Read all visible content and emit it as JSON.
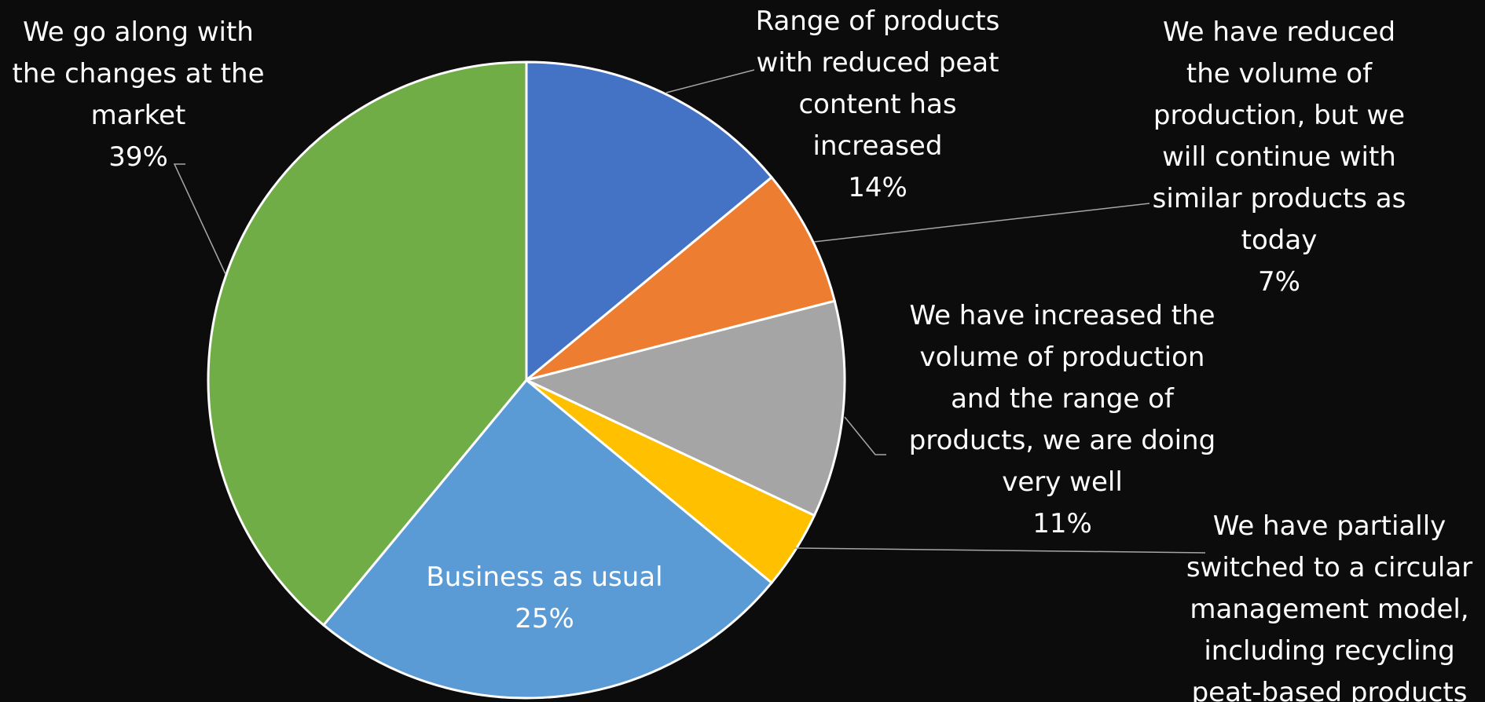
{
  "chart_data": {
    "type": "pie",
    "title": "",
    "slices": [
      {
        "label_lines": [
          "Range of products",
          "with reduced peat",
          "content has",
          "increased"
        ],
        "value": 14,
        "value_label": "14%",
        "color": "#4472c4"
      },
      {
        "label_lines": [
          "We have reduced",
          "the volume of",
          "production, but we",
          "will continue with",
          "similar products as",
          "today"
        ],
        "value": 7,
        "value_label": "7%",
        "color": "#ed7d31"
      },
      {
        "label_lines": [
          "We have increased the",
          "volume of production",
          "and the range of",
          "products, we are doing",
          "very well"
        ],
        "value": 11,
        "value_label": "11%",
        "color": "#a5a5a5"
      },
      {
        "label_lines": [
          "We have partially",
          "switched to a circular",
          "management model,",
          "including recycling",
          "peat-based products"
        ],
        "value": 4,
        "value_label": "",
        "color": "#ffc000"
      },
      {
        "label_lines": [
          "Business as usual"
        ],
        "value": 25,
        "value_label": "25%",
        "color": "#5b9bd5"
      },
      {
        "label_lines": [
          "We go along with",
          "the changes at the",
          "market"
        ],
        "value": 39,
        "value_label": "39%",
        "color": "#70ad47"
      }
    ],
    "start_angle": "12 o'clock",
    "direction": "clockwise",
    "legend": "none",
    "data_labels": "category name and percentage"
  }
}
